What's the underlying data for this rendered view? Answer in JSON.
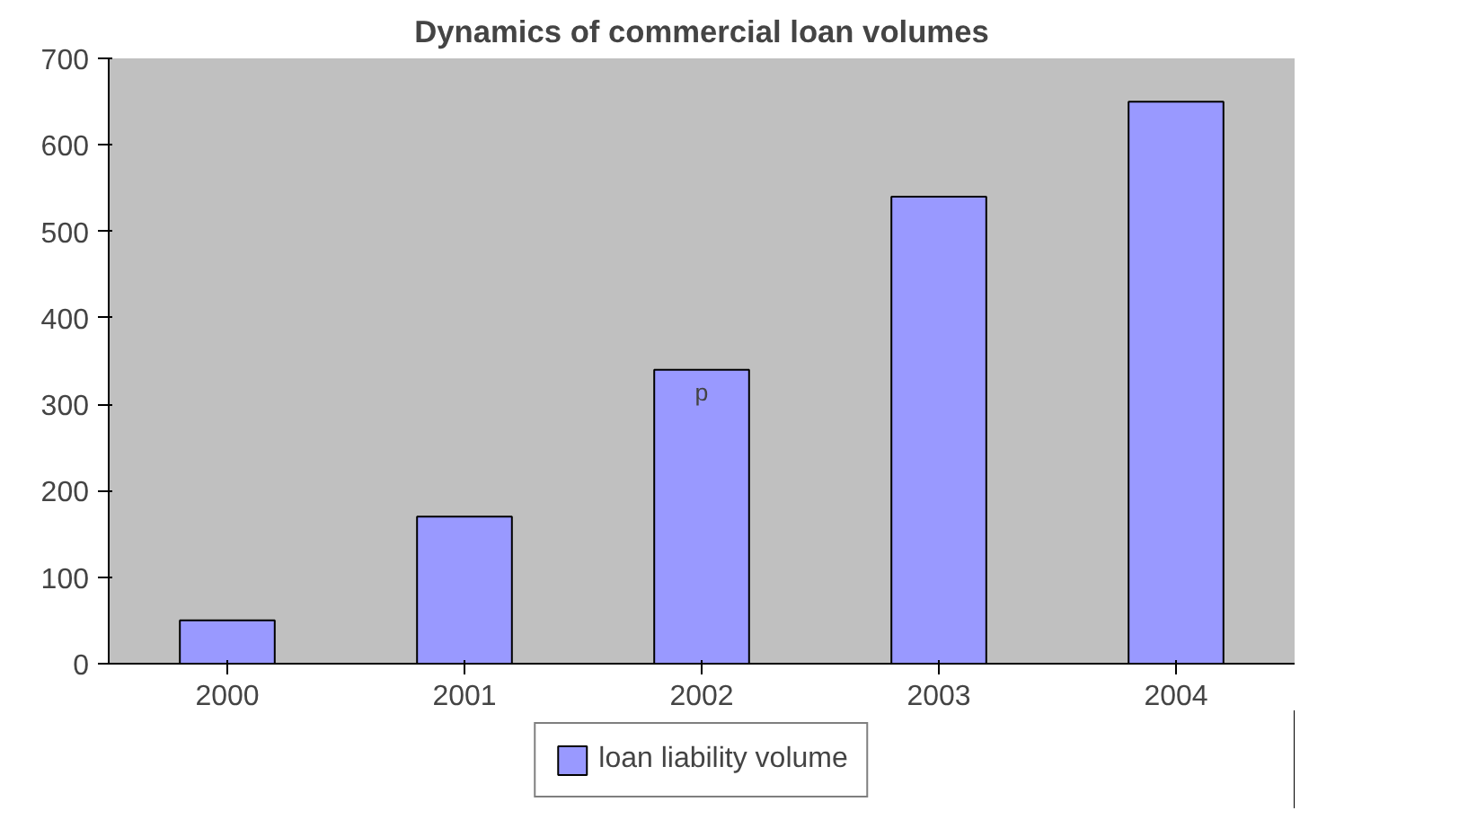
{
  "chart_data": {
    "type": "bar",
    "title": "Dynamics of commercial loan volumes",
    "categories": [
      "2000",
      "2001",
      "2002",
      "2003",
      "2004"
    ],
    "series": [
      {
        "name": "loan liability volume",
        "color": "#9999ff",
        "values": [
          50,
          170,
          340,
          540,
          650
        ]
      }
    ],
    "ylim": [
      0,
      700
    ],
    "yticks": [
      0,
      100,
      200,
      300,
      400,
      500,
      600,
      700
    ],
    "grid": false,
    "legend": "bottom",
    "annotations": [
      "p"
    ]
  }
}
